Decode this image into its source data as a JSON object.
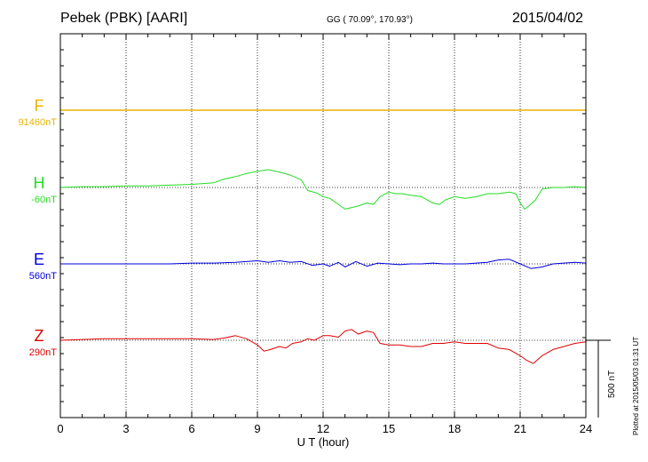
{
  "header": {
    "station": "Pebek (PBK)  [AARI]",
    "coords": "GG ( 70.09°, 170.93°)",
    "date": "2015/04/02"
  },
  "footer": {
    "plotted": "Plotted at 2015/05/03 01:31  UT"
  },
  "colors": {
    "F": "#e8b400",
    "H": "#22dd22",
    "E": "#0000dd",
    "Z": "#dd0000"
  },
  "chart_data": {
    "type": "line",
    "xlabel": "U T (hour)",
    "xlim": [
      0,
      24
    ],
    "xticks": [
      "0",
      "3",
      "6",
      "9",
      "12",
      "15",
      "18",
      "21",
      "24"
    ],
    "scale_label": "500 nT",
    "scale_nT": 500,
    "grid": true,
    "series": [
      {
        "name": "F",
        "baseline_label": "91460nT",
        "x": [
          0,
          24
        ],
        "y": [
          0,
          0
        ]
      },
      {
        "name": "H",
        "baseline_label": "-60nT",
        "x": [
          0,
          1,
          2,
          3,
          4,
          5,
          6,
          7,
          7.5,
          8,
          8.5,
          9,
          9.5,
          10,
          10.5,
          11,
          11.3,
          11.7,
          12,
          12.3,
          12.7,
          13,
          13.3,
          13.6,
          14,
          14.3,
          14.6,
          15,
          15.3,
          15.6,
          16,
          16.5,
          17,
          17.3,
          17.6,
          18,
          18.5,
          19,
          19.5,
          20,
          20.5,
          20.8,
          21,
          21.2,
          21.4,
          21.7,
          22,
          22.5,
          23,
          23.5,
          24
        ],
        "y": [
          0,
          5,
          5,
          10,
          10,
          15,
          20,
          30,
          55,
          70,
          90,
          105,
          115,
          100,
          80,
          50,
          -20,
          -35,
          -60,
          -70,
          -110,
          -140,
          -130,
          -120,
          -100,
          -110,
          -60,
          -30,
          -40,
          -40,
          -50,
          -60,
          -100,
          -110,
          -80,
          -60,
          -70,
          -60,
          -40,
          -40,
          -30,
          -40,
          -100,
          -140,
          -120,
          -80,
          -10,
          0,
          0,
          5,
          0
        ]
      },
      {
        "name": "E",
        "baseline_label": "560nT",
        "x": [
          0,
          1,
          2,
          3,
          4,
          5,
          6,
          7,
          8,
          8.5,
          9,
          9.5,
          10,
          10.5,
          11,
          11.5,
          12,
          12.3,
          12.7,
          13,
          13.5,
          14,
          14.5,
          15,
          15.5,
          16,
          16.5,
          17,
          17.5,
          18,
          18.5,
          19,
          19.5,
          20,
          20.5,
          21,
          21.5,
          22,
          22.5,
          23,
          23.5,
          24
        ],
        "y": [
          0,
          0,
          0,
          0,
          0,
          0,
          5,
          5,
          10,
          15,
          20,
          10,
          20,
          10,
          15,
          -10,
          0,
          -15,
          10,
          -20,
          15,
          -15,
          5,
          0,
          -5,
          0,
          0,
          5,
          0,
          0,
          0,
          5,
          10,
          25,
          30,
          0,
          -30,
          -20,
          0,
          5,
          10,
          5
        ]
      },
      {
        "name": "Z",
        "baseline_label": "290nT",
        "x": [
          0,
          1,
          2,
          3,
          4,
          5,
          6,
          7,
          7.5,
          8,
          8.5,
          9,
          9.3,
          9.6,
          10,
          10.3,
          10.6,
          11,
          11.3,
          11.6,
          12,
          12.3,
          12.7,
          13,
          13.3,
          13.6,
          14,
          14.3,
          14.6,
          15,
          15.5,
          16,
          16.5,
          17,
          17.5,
          18,
          18.5,
          19,
          19.5,
          20,
          20.5,
          21,
          21.3,
          21.6,
          22,
          22.5,
          23,
          23.5,
          24
        ],
        "y": [
          0,
          5,
          10,
          10,
          10,
          10,
          10,
          5,
          15,
          30,
          10,
          -30,
          -70,
          -60,
          -40,
          -50,
          -20,
          -10,
          10,
          0,
          30,
          30,
          20,
          60,
          70,
          40,
          60,
          50,
          -20,
          -30,
          -30,
          -40,
          -40,
          -20,
          -20,
          -10,
          -20,
          -20,
          -20,
          -50,
          -60,
          -100,
          -130,
          -150,
          -100,
          -60,
          -40,
          -20,
          -10
        ]
      }
    ]
  }
}
